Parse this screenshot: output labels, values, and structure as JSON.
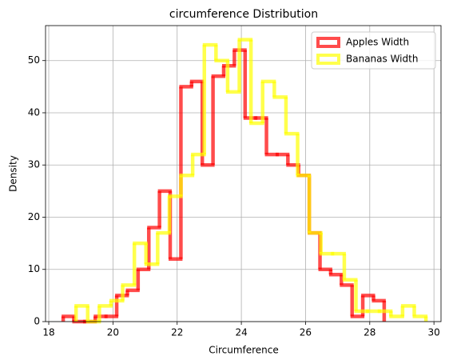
{
  "chart_data": {
    "type": "histogram",
    "title": "circumference Distribution",
    "x_label": "Circumference",
    "y_label": "Density",
    "xlim": [
      17.9,
      30.22
    ],
    "ylim": [
      0,
      56.7
    ],
    "xticks": [
      18,
      20,
      22,
      24,
      26,
      28,
      30
    ],
    "yticks": [
      0,
      10,
      20,
      30,
      40,
      50
    ],
    "grid": true,
    "legend": "upper right",
    "series": [
      {
        "name": "Apples Width",
        "color": "#ff0000",
        "bins": [
          18.45,
          18.783,
          19.117,
          19.45,
          19.783,
          20.117,
          20.45,
          20.783,
          21.117,
          21.45,
          21.783,
          22.117,
          22.45,
          22.783,
          23.117,
          23.45,
          23.783,
          24.117,
          24.45,
          24.783,
          25.117,
          25.45,
          25.783,
          26.117,
          26.45,
          26.783,
          27.117,
          27.45,
          27.783,
          28.117,
          28.45
        ],
        "values": [
          1,
          0,
          0,
          1,
          1,
          5,
          6,
          10,
          18,
          25,
          12,
          45,
          46,
          30,
          47,
          49,
          52,
          39,
          39,
          32,
          32,
          30,
          28,
          17,
          10,
          9,
          7,
          1,
          5,
          4
        ]
      },
      {
        "name": "Bananas Width",
        "color": "#ffff00",
        "bins": [
          18.85,
          19.213,
          19.577,
          19.94,
          20.303,
          20.667,
          21.03,
          21.393,
          21.757,
          22.12,
          22.483,
          22.847,
          23.21,
          23.573,
          23.937,
          24.3,
          24.663,
          25.027,
          25.39,
          25.753,
          26.117,
          26.48,
          26.843,
          27.207,
          27.57,
          27.933,
          28.297,
          28.66,
          29.023,
          29.387,
          29.75
        ],
        "values": [
          3,
          0,
          3,
          4,
          7,
          15,
          11,
          17,
          24,
          28,
          32,
          53,
          50,
          44,
          54,
          38,
          46,
          43,
          36,
          28,
          17,
          13,
          13,
          8,
          2,
          2,
          2,
          1,
          3,
          1
        ]
      }
    ]
  }
}
